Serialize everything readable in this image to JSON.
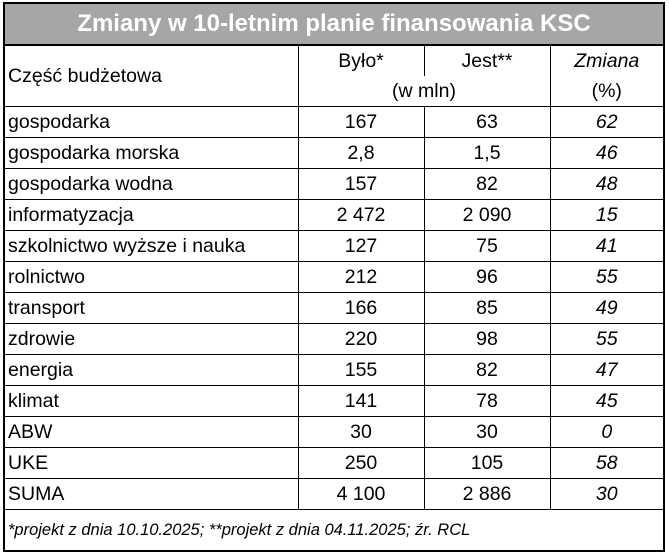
{
  "title": "Zmiany w 10-letnim planie finansowania KSC",
  "headers": {
    "part": "Część budżetowa",
    "was": "Było*",
    "is": "Jest**",
    "change": "Zmiana",
    "unit_amount": "(w mln)",
    "unit_pct": "(%)"
  },
  "rows": [
    {
      "name": "gospodarka",
      "was": "167",
      "is": "63",
      "change": "62"
    },
    {
      "name": "gospodarka morska",
      "was": "2,8",
      "is": "1,5",
      "change": "46"
    },
    {
      "name": "gospodarka wodna",
      "was": "157",
      "is": "82",
      "change": "48"
    },
    {
      "name": "informatyzacja",
      "was": "2 472",
      "is": "2 090",
      "change": "15"
    },
    {
      "name": "szkolnictwo wyższe i nauka",
      "was": "127",
      "is": "75",
      "change": "41"
    },
    {
      "name": "rolnictwo",
      "was": "212",
      "is": "96",
      "change": "55"
    },
    {
      "name": "transport",
      "was": "166",
      "is": "85",
      "change": "49"
    },
    {
      "name": "zdrowie",
      "was": "220",
      "is": "98",
      "change": "55"
    },
    {
      "name": "energia",
      "was": "155",
      "is": "82",
      "change": "47"
    },
    {
      "name": "klimat",
      "was": "141",
      "is": "78",
      "change": "45"
    },
    {
      "name": "ABW",
      "was": "30",
      "is": "30",
      "change": "0"
    },
    {
      "name": "UKE",
      "was": "250",
      "is": "105",
      "change": "58"
    },
    {
      "name": "SUMA",
      "was": "4 100",
      "is": "2 886",
      "change": "30"
    }
  ],
  "footnote": "*projekt z dnia 10.10.2025; **projekt z dnia 04.11.2025; źr. RCL",
  "colors": {
    "title_background": "#a6a6a6",
    "title_text": "#ffffff"
  }
}
